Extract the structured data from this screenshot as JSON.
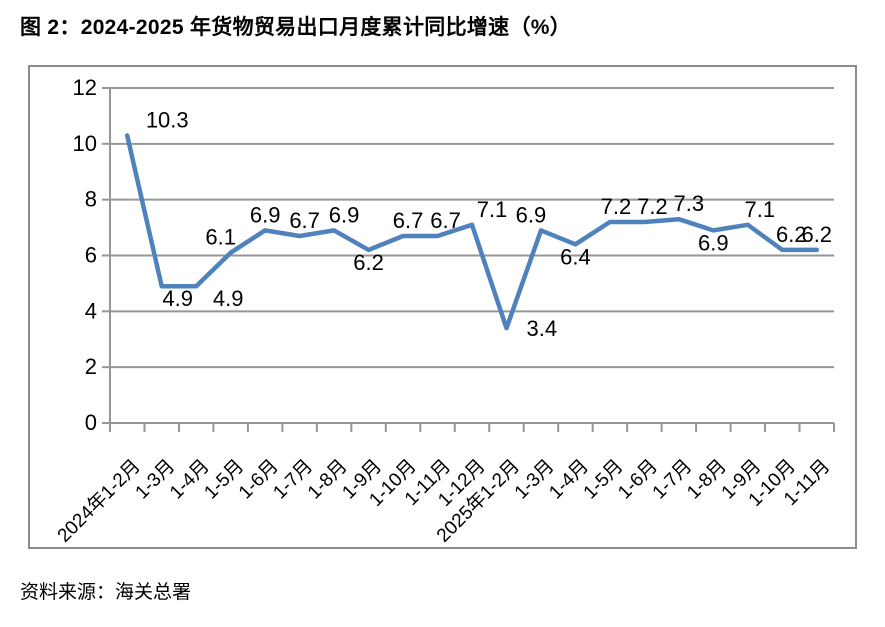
{
  "title": "图 2：2024-2025 年货物贸易出口月度累计同比增速（%）",
  "source": "资料来源：海关总署",
  "colors": {
    "line": "#4F81BD",
    "grid": "#969696",
    "axis": "#969696",
    "frame_border": "#8C8C8C",
    "text": "#000000"
  },
  "chart_data": {
    "type": "line",
    "title": "2024-2025 年货物贸易出口月度累计同比增速（%）",
    "categories": [
      "2024年1-2月",
      "1-3月",
      "1-4月",
      "1-5月",
      "1-6月",
      "1-7月",
      "1-8月",
      "1-9月",
      "1-10月",
      "1-11月",
      "1-12月",
      "2025年1-2月",
      "1-3月",
      "1-4月",
      "1-5月",
      "1-6月",
      "1-7月",
      "1-8月",
      "1-9月",
      "1-10月",
      "1-11月"
    ],
    "values": [
      10.3,
      4.9,
      4.9,
      6.1,
      6.9,
      6.7,
      6.9,
      6.2,
      6.7,
      6.7,
      7.1,
      3.4,
      6.9,
      6.4,
      7.2,
      7.2,
      7.3,
      6.9,
      7.1,
      6.2,
      6.2
    ],
    "ylim": [
      0,
      12
    ],
    "yticks": [
      0,
      2,
      4,
      6,
      8,
      10,
      12
    ],
    "xlabel": "",
    "ylabel": "",
    "grid": true,
    "legend_position": "none",
    "data_labels_shown": true,
    "label_positions": [
      {
        "pos": "above",
        "dx": 40
      },
      {
        "pos": "below",
        "dx": 16
      },
      {
        "pos": "below",
        "dx": 32
      },
      {
        "pos": "above",
        "dx": -10
      },
      {
        "pos": "above",
        "dx": 0
      },
      {
        "pos": "above",
        "dx": 5
      },
      {
        "pos": "above",
        "dx": 10
      },
      {
        "pos": "below",
        "dx": 0
      },
      {
        "pos": "above",
        "dx": 5
      },
      {
        "pos": "above",
        "dx": 8
      },
      {
        "pos": "above",
        "dx": 20
      },
      {
        "pos": "right",
        "dx": 0
      },
      {
        "pos": "above",
        "dx": -10
      },
      {
        "pos": "below",
        "dx": 0
      },
      {
        "pos": "above",
        "dx": 6
      },
      {
        "pos": "above",
        "dx": 8
      },
      {
        "pos": "above",
        "dx": 10
      },
      {
        "pos": "below",
        "dx": 0
      },
      {
        "pos": "above",
        "dx": 12
      },
      {
        "pos": "above",
        "dx": 9
      },
      {
        "pos": "above",
        "dx": 0
      }
    ]
  }
}
